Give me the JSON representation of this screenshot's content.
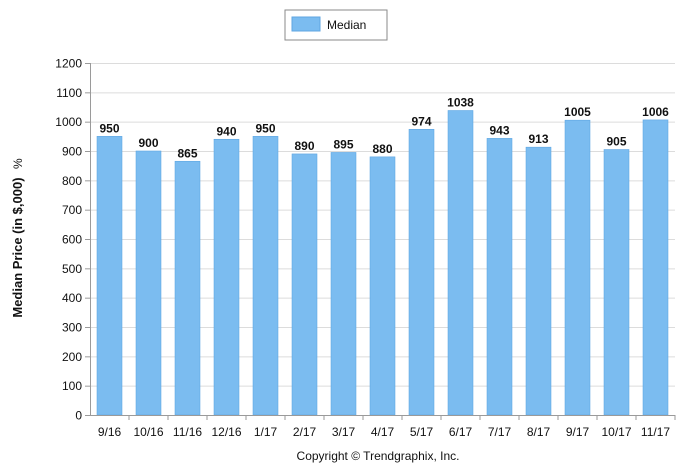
{
  "chart_data": {
    "type": "bar",
    "categories": [
      "9/16",
      "10/16",
      "11/16",
      "12/16",
      "1/17",
      "2/17",
      "3/17",
      "4/17",
      "5/17",
      "6/17",
      "7/17",
      "8/17",
      "9/17",
      "10/17",
      "11/17"
    ],
    "series": [
      {
        "name": "Median",
        "values": [
          950,
          900,
          865,
          940,
          950,
          890,
          895,
          880,
          974,
          1038,
          943,
          913,
          1005,
          905,
          1006
        ],
        "color": "#7bbcf0"
      }
    ],
    "ylabel": "Median Price (in $,000)",
    "ylabel_suffix": "%",
    "ylim": [
      0,
      1200
    ],
    "yticks": [
      0,
      100,
      200,
      300,
      400,
      500,
      600,
      700,
      800,
      900,
      1000,
      1100,
      1200
    ],
    "grid": true,
    "legend": "top-center",
    "data_labels": true
  },
  "footer": {
    "copyright": "Copyright © Trendgraphix, Inc."
  },
  "colors": {
    "bar": "#7bbcf0",
    "bar_stroke": "#5fa6e2",
    "grid": "#dcdcdc",
    "axis": "#9a9a9a"
  }
}
